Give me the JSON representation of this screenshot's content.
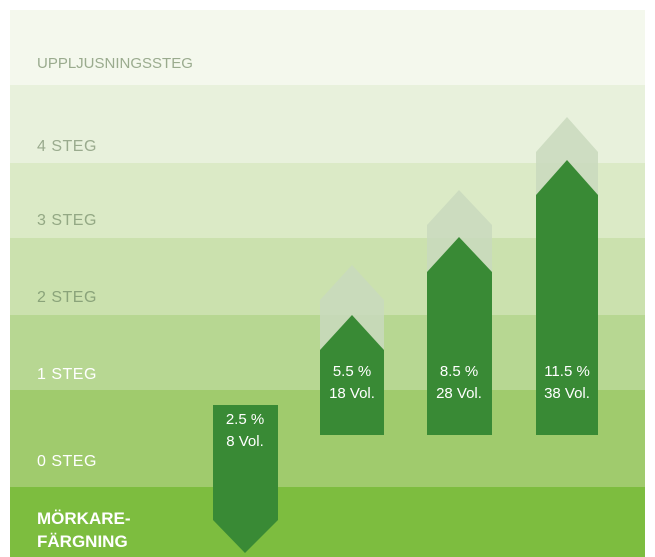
{
  "title": "UPPLJUSNINGSSTEG",
  "levels": [
    "4 STEG",
    "3 STEG",
    "2 STEG",
    "1 STEG",
    "0 STEG"
  ],
  "darkening": [
    "MÖRKARE-",
    "FÄRGNING"
  ],
  "arrows": [
    {
      "percent": "2.5 %",
      "volume": "8 Vol."
    },
    {
      "percent": "5.5 %",
      "volume": "18 Vol."
    },
    {
      "percent": "8.5 %",
      "volume": "28 Vol."
    },
    {
      "percent": "11.5 %",
      "volume": "38 Vol."
    }
  ]
}
